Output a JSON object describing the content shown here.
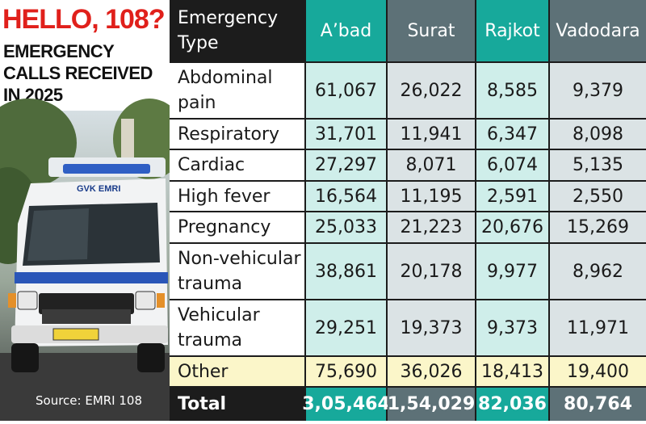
{
  "headline": "HELLO, 108?",
  "subhead": "EMERGENCY CALLS RECEIVED IN 2025",
  "source": "Source: EMRI 108",
  "colors": {
    "headline_red": "#e0201b",
    "teal_header": "#17a99b",
    "gray_header": "#5d7177",
    "teal_light": "#cfeeea",
    "gray_light": "#dbe3e5",
    "other_row": "#fbf6c9",
    "total_dark": "#1c1c1c"
  },
  "chart_data": {
    "type": "table",
    "columns": [
      "Emergency Type",
      "A’bad",
      "Surat",
      "Rajkot",
      "Vadodara"
    ],
    "rows": [
      {
        "type": "Abdominal pain",
        "values": [
          "61,067",
          "26,022",
          "8,585",
          "9,379"
        ]
      },
      {
        "type": "Respiratory",
        "values": [
          "31,701",
          "11,941",
          "6,347",
          "8,098"
        ]
      },
      {
        "type": "Cardiac",
        "values": [
          "27,297",
          "8,071",
          "6,074",
          "5,135"
        ]
      },
      {
        "type": "High fever",
        "values": [
          "16,564",
          "11,195",
          "2,591",
          "2,550"
        ]
      },
      {
        "type": "Pregnancy",
        "values": [
          "25,033",
          "21,223",
          "20,676",
          "15,269"
        ]
      },
      {
        "type": "Non-vehicular trauma",
        "values": [
          "38,861",
          "20,178",
          "9,977",
          "8,962"
        ]
      },
      {
        "type": "Vehicular trauma",
        "values": [
          "29,251",
          "19,373",
          "9,373",
          "11,971"
        ]
      },
      {
        "type": "Other",
        "values": [
          "75,690",
          "36,026",
          "18,413",
          "19,400"
        ]
      }
    ],
    "total": {
      "label": "Total",
      "values": [
        "3,05,464",
        "1,54,029",
        "82,036",
        "80,764"
      ]
    }
  }
}
